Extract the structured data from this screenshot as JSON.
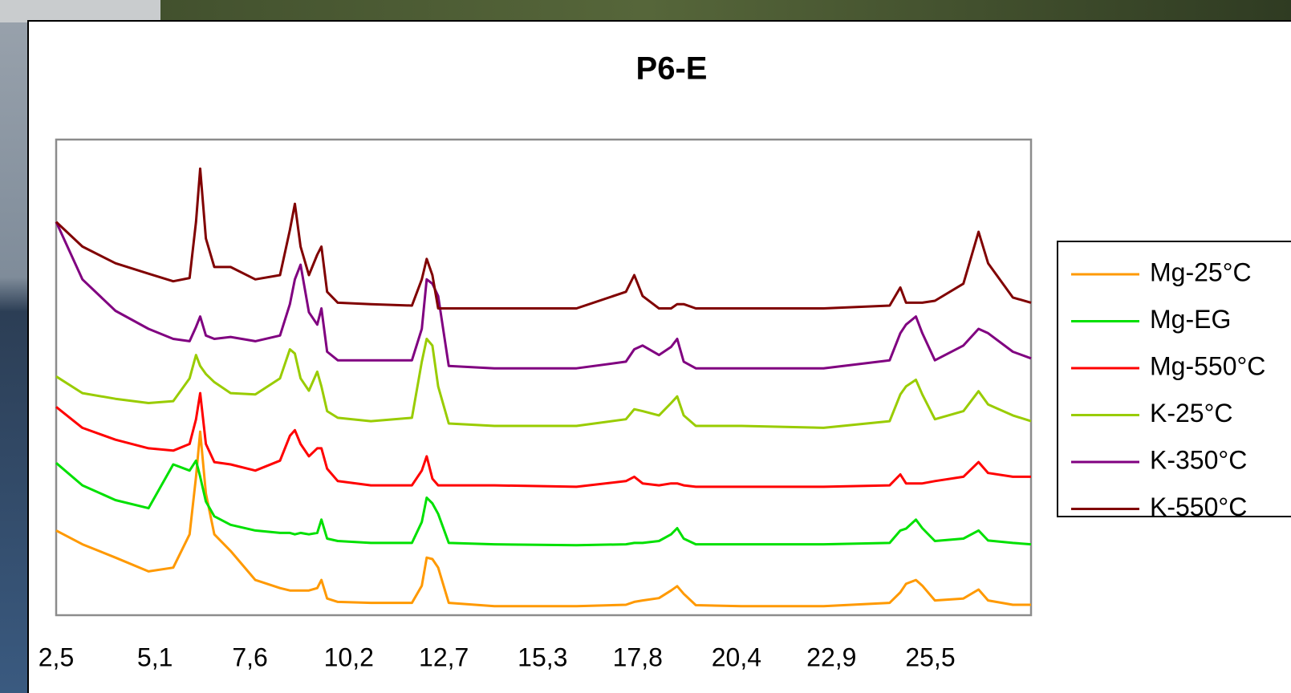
{
  "chart_data": {
    "type": "line",
    "title": "P6-E",
    "x": [
      2.5,
      3.19,
      4.06,
      4.93,
      5.58,
      6.01,
      6.18,
      6.29,
      6.44,
      6.66,
      7.09,
      7.74,
      8.39,
      8.65,
      8.78,
      8.93,
      9.15,
      9.37,
      9.48,
      9.63,
      9.91,
      10.78,
      11.86,
      12.12,
      12.25,
      12.4,
      12.55,
      12.83,
      14.03,
      16.19,
      17.49,
      17.71,
      17.93,
      18.36,
      18.68,
      18.84,
      19.01,
      19.33,
      20.53,
      22.69,
      24.43,
      24.71,
      24.86,
      25.12,
      25.29,
      25.62,
      26.37,
      26.77,
      27.02,
      27.67,
      28.15
    ],
    "xlim": [
      2.5,
      28.15
    ],
    "xticks": [
      {
        "value": 2.5,
        "label": "2,5"
      },
      {
        "value": 5.1,
        "label": "5,1"
      },
      {
        "value": 7.6,
        "label": "7,6"
      },
      {
        "value": 10.2,
        "label": "10,2"
      },
      {
        "value": 12.7,
        "label": "12,7"
      },
      {
        "value": 15.3,
        "label": "15,3"
      },
      {
        "value": 17.8,
        "label": "17,8"
      },
      {
        "value": 20.4,
        "label": "20,4"
      },
      {
        "value": 22.9,
        "label": "22,9"
      },
      {
        "value": 25.5,
        "label": "25,5"
      }
    ],
    "ylim": [
      0,
      100
    ],
    "grid": false,
    "legend": "right",
    "series": [
      {
        "name": "Mg-25°C",
        "color": "#ff9900",
        "values": [
          17.8,
          14.9,
          12.1,
          9.2,
          10.0,
          17.0,
          29.1,
          38.6,
          25.6,
          17.0,
          13.5,
          7.4,
          5.7,
          5.2,
          5.2,
          5.2,
          5.2,
          5.7,
          7.4,
          3.5,
          2.8,
          2.6,
          2.6,
          6.2,
          12.1,
          11.8,
          10.0,
          2.6,
          1.9,
          1.9,
          2.2,
          2.8,
          3.1,
          3.6,
          5.2,
          6.1,
          4.5,
          2.1,
          1.9,
          1.9,
          2.6,
          4.8,
          6.6,
          7.4,
          6.2,
          3.1,
          3.5,
          5.4,
          3.1,
          2.2,
          2.2
        ]
      },
      {
        "name": "Mg-EG",
        "color": "#00e000",
        "values": [
          32.0,
          27.3,
          24.2,
          22.5,
          31.7,
          30.4,
          32.5,
          29.1,
          23.9,
          20.8,
          19.0,
          17.8,
          17.3,
          17.3,
          17.0,
          17.3,
          17.0,
          17.3,
          20.1,
          16.1,
          15.6,
          15.2,
          15.2,
          19.6,
          24.7,
          23.5,
          21.3,
          15.2,
          14.9,
          14.7,
          14.9,
          15.2,
          15.2,
          15.6,
          17.0,
          18.3,
          16.1,
          14.9,
          14.9,
          14.9,
          15.2,
          17.8,
          18.2,
          20.1,
          18.3,
          15.6,
          16.1,
          17.8,
          15.7,
          15.2,
          14.9
        ]
      },
      {
        "name": "Mg-550°C",
        "color": "#ff0000",
        "values": [
          43.8,
          39.4,
          36.9,
          35.1,
          34.6,
          36.0,
          41.2,
          46.7,
          36.0,
          32.2,
          31.7,
          30.4,
          32.5,
          37.7,
          38.9,
          36.0,
          33.4,
          35.1,
          35.1,
          30.8,
          28.2,
          27.3,
          27.3,
          30.4,
          33.4,
          28.7,
          27.3,
          27.3,
          27.3,
          27.0,
          28.2,
          29.1,
          27.7,
          27.3,
          27.7,
          27.7,
          27.3,
          27.0,
          27.0,
          27.0,
          27.3,
          29.6,
          27.7,
          27.7,
          27.7,
          28.2,
          29.1,
          32.2,
          29.9,
          29.1,
          29.1
        ]
      },
      {
        "name": "K-25°C",
        "color": "#99cc00",
        "values": [
          50.2,
          46.7,
          45.5,
          44.6,
          45.0,
          49.8,
          54.7,
          52.4,
          50.7,
          49.0,
          46.7,
          46.4,
          49.8,
          55.9,
          55.0,
          49.8,
          47.2,
          51.2,
          48.1,
          42.9,
          41.5,
          40.8,
          41.5,
          53.3,
          58.1,
          56.7,
          48.1,
          40.3,
          39.8,
          39.8,
          41.2,
          43.3,
          42.9,
          42.0,
          44.6,
          46.0,
          42.0,
          39.8,
          39.8,
          39.4,
          40.8,
          46.4,
          48.1,
          49.5,
          46.4,
          41.2,
          42.9,
          47.1,
          44.3,
          42.0,
          40.8
        ]
      },
      {
        "name": "K-350°C",
        "color": "#800080",
        "values": [
          82.7,
          70.6,
          64.0,
          60.2,
          58.1,
          57.6,
          60.6,
          62.8,
          58.8,
          58.1,
          58.5,
          57.6,
          58.8,
          65.4,
          70.6,
          73.7,
          63.7,
          61.1,
          64.5,
          55.4,
          53.6,
          53.6,
          53.6,
          60.2,
          70.6,
          69.7,
          67.1,
          52.4,
          51.9,
          51.9,
          53.3,
          55.9,
          56.7,
          54.7,
          56.4,
          58.1,
          53.3,
          51.9,
          51.9,
          51.9,
          53.6,
          59.3,
          61.1,
          62.8,
          59.3,
          53.6,
          56.7,
          60.2,
          59.3,
          55.4,
          54.0
        ]
      },
      {
        "name": "K-550°C",
        "color": "#800000",
        "values": [
          82.7,
          77.5,
          74.0,
          71.8,
          70.2,
          70.9,
          82.7,
          93.9,
          79.2,
          73.2,
          73.2,
          70.6,
          71.5,
          81.0,
          86.5,
          77.5,
          71.5,
          75.8,
          77.5,
          68.0,
          65.7,
          65.4,
          65.1,
          70.6,
          74.9,
          71.5,
          64.5,
          64.5,
          64.5,
          64.5,
          68.0,
          71.5,
          67.1,
          64.5,
          64.5,
          65.4,
          65.4,
          64.5,
          64.5,
          64.5,
          65.1,
          68.9,
          65.7,
          65.7,
          65.7,
          66.1,
          69.7,
          80.6,
          74.0,
          66.8,
          65.7
        ]
      }
    ]
  }
}
